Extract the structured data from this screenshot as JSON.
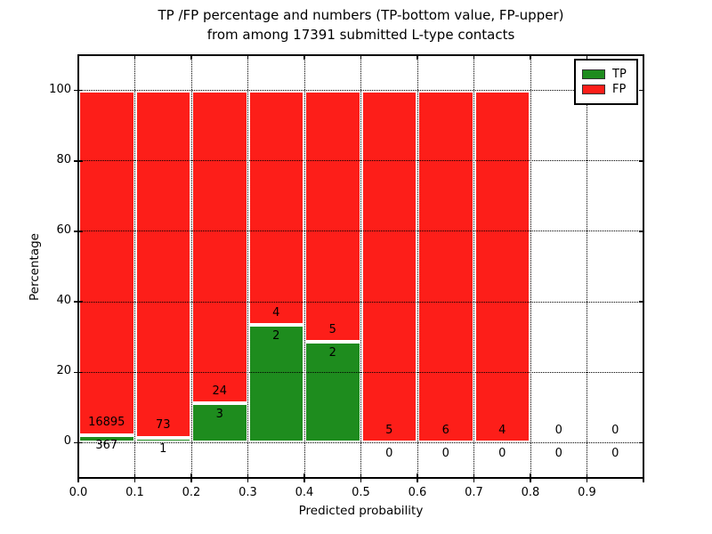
{
  "chart_data": {
    "type": "bar",
    "stacked": true,
    "title_line1": "TP /FP percentage and numbers (TP-bottom value, FP-upper)",
    "title_line2": "from among 17391 submitted L-type contacts",
    "total_submitted_contacts": 17391,
    "xlabel": "Predicted probability",
    "ylabel": "Percentage",
    "xlim": [
      0.0,
      1.0
    ],
    "ylim": [
      -10,
      110
    ],
    "grid": true,
    "grid_style": "dotted",
    "legend_position": "upper right",
    "legend": [
      {
        "label": "TP",
        "color": "#1e8c1e"
      },
      {
        "label": "FP",
        "color": "#fd1e19"
      }
    ],
    "xticks": [
      {
        "v": 0.0,
        "label": "0.0"
      },
      {
        "v": 0.1,
        "label": "0.1"
      },
      {
        "v": 0.2,
        "label": "0.2"
      },
      {
        "v": 0.3,
        "label": "0.3"
      },
      {
        "v": 0.4,
        "label": "0.4"
      },
      {
        "v": 0.5,
        "label": "0.5"
      },
      {
        "v": 0.6,
        "label": "0.6"
      },
      {
        "v": 0.7,
        "label": "0.7"
      },
      {
        "v": 0.8,
        "label": "0.8"
      },
      {
        "v": 0.9,
        "label": "0.9"
      },
      {
        "v": 1.0,
        "label": ""
      }
    ],
    "yticks": [
      {
        "v": 0,
        "label": "0"
      },
      {
        "v": 20,
        "label": "20"
      },
      {
        "v": 40,
        "label": "40"
      },
      {
        "v": 60,
        "label": "60"
      },
      {
        "v": 80,
        "label": "80"
      },
      {
        "v": 100,
        "label": "100"
      }
    ],
    "bins": [
      {
        "range": [
          0.0,
          0.1
        ],
        "tp": 367,
        "fp": 16895,
        "tp_pct": 2.13,
        "fp_pct": 97.87
      },
      {
        "range": [
          0.1,
          0.2
        ],
        "tp": 1,
        "fp": 73,
        "tp_pct": 1.35,
        "fp_pct": 98.65
      },
      {
        "range": [
          0.2,
          0.3
        ],
        "tp": 3,
        "fp": 24,
        "tp_pct": 11.11,
        "fp_pct": 88.89
      },
      {
        "range": [
          0.3,
          0.4
        ],
        "tp": 2,
        "fp": 4,
        "tp_pct": 33.33,
        "fp_pct": 66.67
      },
      {
        "range": [
          0.4,
          0.5
        ],
        "tp": 2,
        "fp": 5,
        "tp_pct": 28.57,
        "fp_pct": 71.43
      },
      {
        "range": [
          0.5,
          0.6
        ],
        "tp": 0,
        "fp": 5,
        "tp_pct": 0,
        "fp_pct": 100
      },
      {
        "range": [
          0.6,
          0.7
        ],
        "tp": 0,
        "fp": 6,
        "tp_pct": 0,
        "fp_pct": 100
      },
      {
        "range": [
          0.7,
          0.8
        ],
        "tp": 0,
        "fp": 4,
        "tp_pct": 0,
        "fp_pct": 100
      },
      {
        "range": [
          0.8,
          0.9
        ],
        "tp": 0,
        "fp": 0,
        "tp_pct": 0,
        "fp_pct": 0
      },
      {
        "range": [
          0.9,
          1.0
        ],
        "tp": 0,
        "fp": 0,
        "tp_pct": 0,
        "fp_pct": 0
      }
    ]
  }
}
